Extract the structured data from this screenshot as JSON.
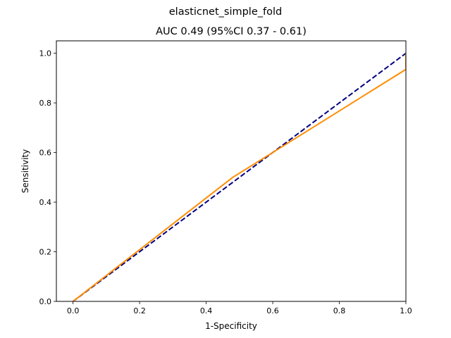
{
  "chart_data": {
    "type": "line",
    "suptitle": "elasticnet_simple_fold",
    "title": "AUC 0.49 (95%CI 0.37 - 0.61)",
    "xlabel": "1-Specificity",
    "ylabel": "Sensitivity",
    "xlim": [
      -0.05,
      1.0
    ],
    "ylim": [
      0.0,
      1.05
    ],
    "xticks": [
      0.0,
      0.2,
      0.4,
      0.6,
      0.8,
      1.0
    ],
    "yticks": [
      0.0,
      0.2,
      0.4,
      0.6,
      0.8,
      1.0
    ],
    "xtick_labels": [
      "0.0",
      "0.2",
      "0.4",
      "0.6",
      "0.8",
      "1.0"
    ],
    "ytick_labels": [
      "0.0",
      "0.2",
      "0.4",
      "0.6",
      "0.8",
      "1.0"
    ],
    "grid": false,
    "legend": "none",
    "series": [
      {
        "style": "solid",
        "color": "#ff8c00",
        "x": [
          0.0,
          0.48,
          0.6,
          1.0,
          1.0
        ],
        "y": [
          0.0,
          0.5,
          0.6,
          0.935,
          1.0
        ]
      },
      {
        "style": "dashed",
        "color": "#000080",
        "x": [
          0.0,
          1.0
        ],
        "y": [
          0.0,
          1.0
        ]
      }
    ]
  }
}
